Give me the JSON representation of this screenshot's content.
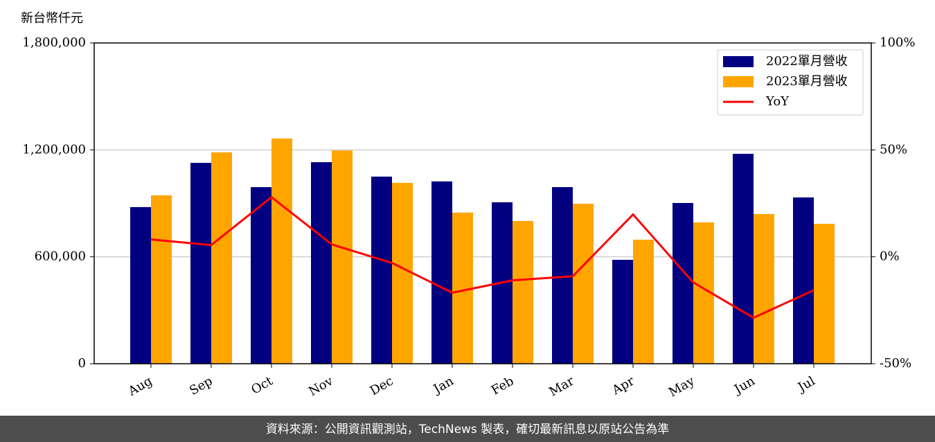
{
  "chart_data": {
    "type": "bar",
    "y_label": "新台幣仟元",
    "categories": [
      "Aug",
      "Sep",
      "Oct",
      "Nov",
      "Dec",
      "Jan",
      "Feb",
      "Mar",
      "Apr",
      "May",
      "Jun",
      "Jul"
    ],
    "series": [
      {
        "name": "2022單月營收",
        "color": "#000080",
        "values": [
          879000,
          1127000,
          991000,
          1131000,
          1050000,
          1023000,
          906000,
          991000,
          583000,
          902000,
          1178000,
          933000
        ]
      },
      {
        "name": "2023單月營收",
        "color": "#ffa500",
        "values": [
          945000,
          1186000,
          1264000,
          1197000,
          1015000,
          848000,
          801000,
          898000,
          696000,
          793000,
          840000,
          785000
        ]
      },
      {
        "name": "YoY",
        "color": "#ff0000",
        "type": "line",
        "axis": "y2",
        "values": [
          8.1,
          5.5,
          27.9,
          5.8,
          -2.9,
          -16.8,
          -11.0,
          -9.1,
          19.8,
          -12.0,
          -28.5,
          -15.6
        ]
      }
    ],
    "ylim": [
      0,
      1800000
    ],
    "yticks": [
      0,
      {
        "value": 600000,
        "label": "600,000"
      },
      {
        "value": 1200000,
        "label": "1,200,000"
      },
      {
        "value": 1800000,
        "label": "1,800,000"
      }
    ],
    "y2lim": [
      -50,
      100
    ],
    "y2ticks": [
      {
        "value": -50,
        "label": "-50%"
      },
      {
        "value": 0,
        "label": "0%"
      },
      {
        "value": 50,
        "label": "50%"
      },
      {
        "value": 100,
        "label": "100%"
      }
    ],
    "grid": true,
    "legend": "upper right"
  },
  "footer": "資料來源：公開資訊觀測站，TechNews 製表，確切最新訊息以原站公告為準"
}
